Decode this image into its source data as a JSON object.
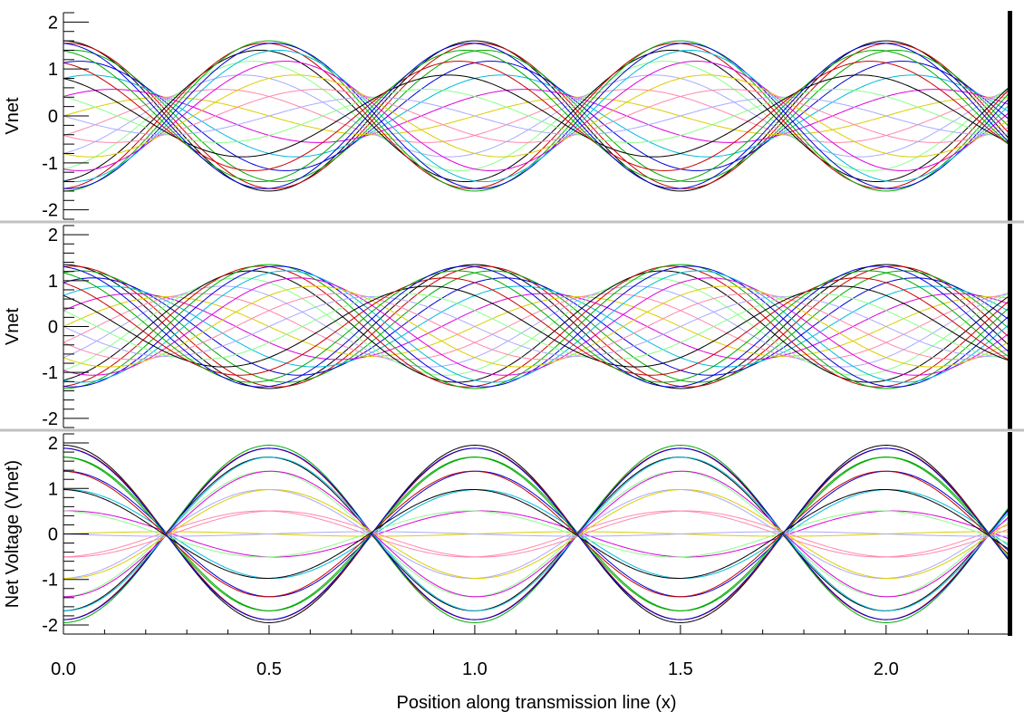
{
  "chart_data": [
    {
      "type": "line",
      "title": "",
      "xlabel": "",
      "ylabel": "Vnet",
      "xlim": [
        0,
        2.3
      ],
      "ylim": [
        -2.2,
        2.2
      ],
      "yticks": [
        {
          "value": 2,
          "label": "2"
        },
        {
          "value": 1,
          "label": "1"
        },
        {
          "value": 0,
          "label": "0"
        },
        {
          "value": -1,
          "label": "-1"
        },
        {
          "value": -2,
          "label": "-2"
        }
      ],
      "wavelength": 1.0,
      "forward_amplitude": 1.0,
      "reflected_amplitude": 0.6,
      "standing_wave_max": 1.6,
      "standing_wave_min": 0.4,
      "series_count": 24,
      "grid": false,
      "legend": "none"
    },
    {
      "type": "line",
      "title": "",
      "xlabel": "",
      "ylabel": "Vnet",
      "xlim": [
        0,
        2.3
      ],
      "ylim": [
        -2.2,
        2.2
      ],
      "yticks": [
        {
          "value": 2,
          "label": "2"
        },
        {
          "value": 1,
          "label": "1"
        },
        {
          "value": 0,
          "label": "0"
        },
        {
          "value": -1,
          "label": "-1"
        },
        {
          "value": -2,
          "label": "-2"
        }
      ],
      "wavelength": 1.0,
      "forward_amplitude": 1.0,
      "reflected_amplitude": 0.35,
      "standing_wave_max": 1.35,
      "standing_wave_min": 0.65,
      "series_count": 24,
      "grid": false,
      "legend": "none"
    },
    {
      "type": "line",
      "title": "",
      "xlabel": "Position along transmission line (x)",
      "ylabel": "Net Voltage (Vnet)",
      "xlim": [
        0,
        2.3
      ],
      "ylim": [
        -2.2,
        2.2
      ],
      "xticks": [
        {
          "value": 0.0,
          "label": "0.0"
        },
        {
          "value": 0.5,
          "label": "0.5"
        },
        {
          "value": 1.0,
          "label": "1.0"
        },
        {
          "value": 1.5,
          "label": "1.5"
        },
        {
          "value": 2.0,
          "label": "2.0"
        }
      ],
      "yticks": [
        {
          "value": 2,
          "label": "2"
        },
        {
          "value": 1,
          "label": "1"
        },
        {
          "value": 0,
          "label": "0"
        },
        {
          "value": -1,
          "label": "-1"
        },
        {
          "value": -2,
          "label": "-2"
        }
      ],
      "wavelength": 1.0,
      "forward_amplitude": 1.0,
      "reflected_amplitude": 0.95,
      "standing_wave_max": 1.95,
      "standing_wave_min": 0.05,
      "series_count": 24,
      "grid": false,
      "legend": "none"
    }
  ],
  "palette": [
    "#000000",
    "#cc0000",
    "#00aa00",
    "#0000dd",
    "#00bbdd",
    "#dd00dd",
    "#ddcc00",
    "#ff88aa",
    "#aaaaff",
    "#88ff88"
  ],
  "separator_color": "#c0c0c0",
  "load_bar_color": "#000000"
}
